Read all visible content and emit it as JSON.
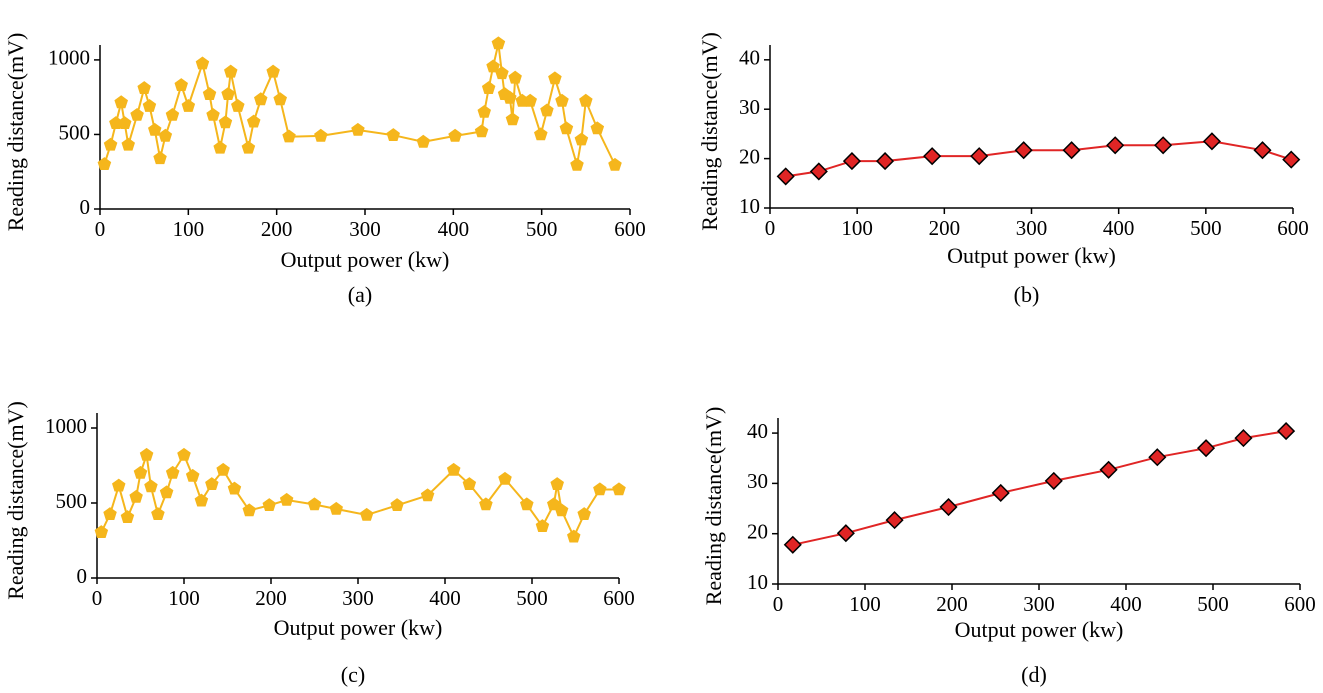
{
  "chart_data": [
    {
      "type": "line",
      "caption": "(a)",
      "x_label": "Output power (kw)",
      "y_label": "Reading distance(mV)",
      "xlim": [
        0,
        600
      ],
      "ylim": [
        0,
        1100
      ],
      "xticks": [
        0,
        100,
        200,
        300,
        400,
        500,
        600
      ],
      "yticks": [
        0,
        500,
        1000
      ],
      "x": [
        5,
        12,
        18,
        24,
        28,
        32,
        42,
        50,
        56,
        62,
        68,
        74,
        82,
        92,
        100,
        116,
        124,
        128,
        136,
        142,
        145,
        148,
        156,
        168,
        174,
        182,
        196,
        204,
        214,
        250,
        292,
        332,
        366,
        402,
        432,
        435,
        440,
        445,
        451,
        455,
        458,
        464,
        467,
        470,
        478,
        487,
        499,
        506,
        515,
        523,
        528,
        540,
        545,
        550,
        563,
        583
      ],
      "series": [
        {
          "color": "#f5b61c",
          "marker": "pentagon",
          "values": [
            300,
            430,
            575,
            715,
            575,
            430,
            630,
            810,
            690,
            530,
            340,
            490,
            630,
            830,
            690,
            975,
            770,
            630,
            410,
            580,
            770,
            920,
            690,
            410,
            585,
            735,
            920,
            735,
            485,
            490,
            530,
            495,
            450,
            490,
            520,
            650,
            810,
            955,
            1110,
            910,
            770,
            745,
            600,
            880,
            725,
            725,
            500,
            660,
            875,
            725,
            540,
            295,
            465,
            725,
            540,
            295
          ]
        }
      ]
    },
    {
      "type": "line",
      "caption": "(b)",
      "x_label": "Output power (kw)",
      "y_label": "Reading distance(mV)",
      "xlim": [
        0,
        600
      ],
      "ylim": [
        10,
        43
      ],
      "xticks": [
        0,
        100,
        200,
        300,
        400,
        500,
        600
      ],
      "yticks": [
        10,
        20,
        30,
        40
      ],
      "x": [
        18,
        56,
        94,
        132,
        186,
        240,
        291,
        346,
        396,
        451,
        507,
        565,
        598
      ],
      "series": [
        {
          "color": "#e02525",
          "line_color": "#e02525",
          "marker": "diamond",
          "values": [
            16.4,
            17.4,
            19.5,
            19.5,
            20.5,
            20.5,
            21.7,
            21.7,
            22.7,
            22.7,
            23.5,
            21.7,
            19.8
          ]
        }
      ]
    },
    {
      "type": "line",
      "caption": "(c)",
      "x_label": "Output power (kw)",
      "y_label": "Reading distance(mV)",
      "xlim": [
        0,
        600
      ],
      "ylim": [
        0,
        1100
      ],
      "xticks": [
        0,
        100,
        200,
        300,
        400,
        500,
        600
      ],
      "yticks": [
        0,
        500,
        1000
      ],
      "x": [
        5,
        15,
        25,
        35,
        45,
        50,
        57,
        62,
        70,
        80,
        87,
        100,
        110,
        120,
        132,
        145,
        158,
        175,
        198,
        218,
        250,
        275,
        310,
        345,
        380,
        410,
        428,
        447,
        469,
        494,
        512,
        525,
        529,
        534,
        548,
        560,
        578,
        600
      ],
      "series": [
        {
          "color": "#f5b61c",
          "marker": "pentagon",
          "values": [
            305,
            425,
            615,
            405,
            540,
            700,
            820,
            610,
            425,
            570,
            700,
            820,
            680,
            515,
            625,
            720,
            595,
            450,
            485,
            520,
            490,
            460,
            420,
            485,
            550,
            720,
            625,
            490,
            660,
            490,
            345,
            490,
            625,
            450,
            275,
            425,
            590,
            590
          ]
        }
      ]
    },
    {
      "type": "line",
      "caption": "(d)",
      "x_label": "Output power (kw)",
      "y_label": "Reading distance(mV)",
      "xlim": [
        0,
        600
      ],
      "ylim": [
        10,
        43
      ],
      "xticks": [
        0,
        100,
        200,
        300,
        400,
        500,
        600
      ],
      "yticks": [
        10,
        20,
        30,
        40
      ],
      "x": [
        17,
        78,
        134,
        196,
        256,
        317,
        380,
        436,
        492,
        535,
        584
      ],
      "series": [
        {
          "color": "#e02525",
          "line_color": "#e02525",
          "marker": "diamond",
          "values": [
            17.8,
            20.1,
            22.7,
            25.3,
            28.1,
            30.5,
            32.7,
            35.2,
            37.0,
            39.0,
            40.4
          ]
        }
      ]
    }
  ]
}
